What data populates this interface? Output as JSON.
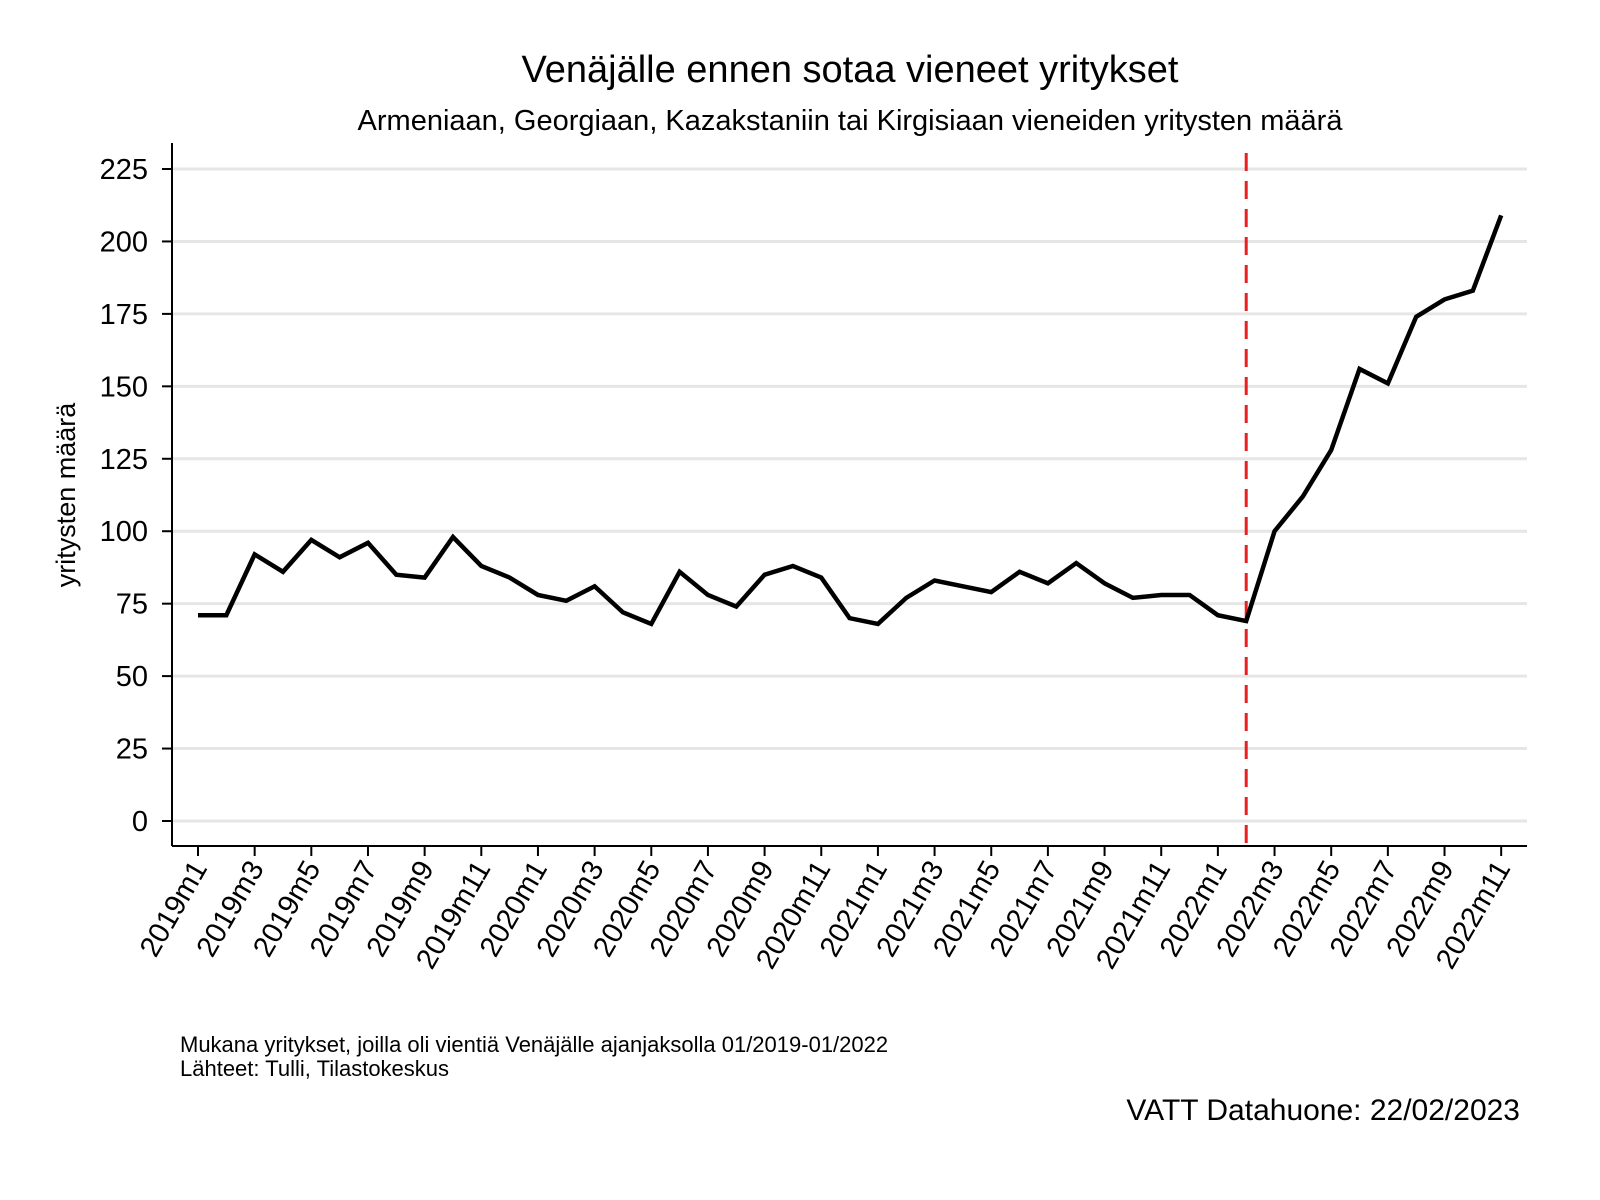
{
  "chart_data": {
    "type": "line",
    "title": "Venäjälle ennen sotaa vieneet yritykset",
    "subtitle": "Armeniaan, Georgiaan, Kazakstaniin tai Kirgisiaan vieneiden yritysten määrä",
    "xlabel": "",
    "ylabel": "yritysten määrä",
    "ylim": [
      -10,
      230
    ],
    "yticks": [
      0,
      25,
      50,
      75,
      100,
      125,
      150,
      175,
      200,
      225
    ],
    "grid": true,
    "legend": "none",
    "line_color": "#000000",
    "vline": {
      "x": "2022m2",
      "color": "#e8201f",
      "style": "dashed"
    },
    "x": [
      "2019m1",
      "2019m2",
      "2019m3",
      "2019m4",
      "2019m5",
      "2019m6",
      "2019m7",
      "2019m8",
      "2019m9",
      "2019m10",
      "2019m11",
      "2019m12",
      "2020m1",
      "2020m2",
      "2020m3",
      "2020m4",
      "2020m5",
      "2020m6",
      "2020m7",
      "2020m8",
      "2020m9",
      "2020m10",
      "2020m11",
      "2020m12",
      "2021m1",
      "2021m2",
      "2021m3",
      "2021m4",
      "2021m5",
      "2021m6",
      "2021m7",
      "2021m8",
      "2021m9",
      "2021m10",
      "2021m11",
      "2021m12",
      "2022m1",
      "2022m2",
      "2022m3",
      "2022m4",
      "2022m5",
      "2022m6",
      "2022m7",
      "2022m8",
      "2022m9",
      "2022m10",
      "2022m11"
    ],
    "values": [
      71,
      71,
      92,
      86,
      97,
      91,
      96,
      85,
      84,
      98,
      88,
      84,
      78,
      76,
      81,
      72,
      68,
      86,
      78,
      74,
      85,
      88,
      84,
      70,
      68,
      77,
      83,
      81,
      79,
      86,
      82,
      89,
      82,
      77,
      78,
      78,
      71,
      69,
      100,
      112,
      128,
      156,
      151,
      174,
      180,
      183,
      209
    ],
    "xtick_labels": [
      "2019m1",
      "2019m3",
      "2019m5",
      "2019m7",
      "2019m9",
      "2019m11",
      "2020m1",
      "2020m3",
      "2020m5",
      "2020m7",
      "2020m9",
      "2020m11",
      "2021m1",
      "2021m3",
      "2021m5",
      "2021m7",
      "2021m9",
      "2021m11",
      "2022m1",
      "2022m3",
      "2022m5",
      "2022m7",
      "2022m9",
      "2022m11"
    ]
  },
  "notes": {
    "line1": "Mukana yritykset, joilla oli vientiä Venäjälle ajanjaksolla 01/2019-01/2022",
    "line2": "Lähteet: Tulli, Tilastokeskus"
  },
  "credit": "VATT Datahuone: 22/02/2023"
}
